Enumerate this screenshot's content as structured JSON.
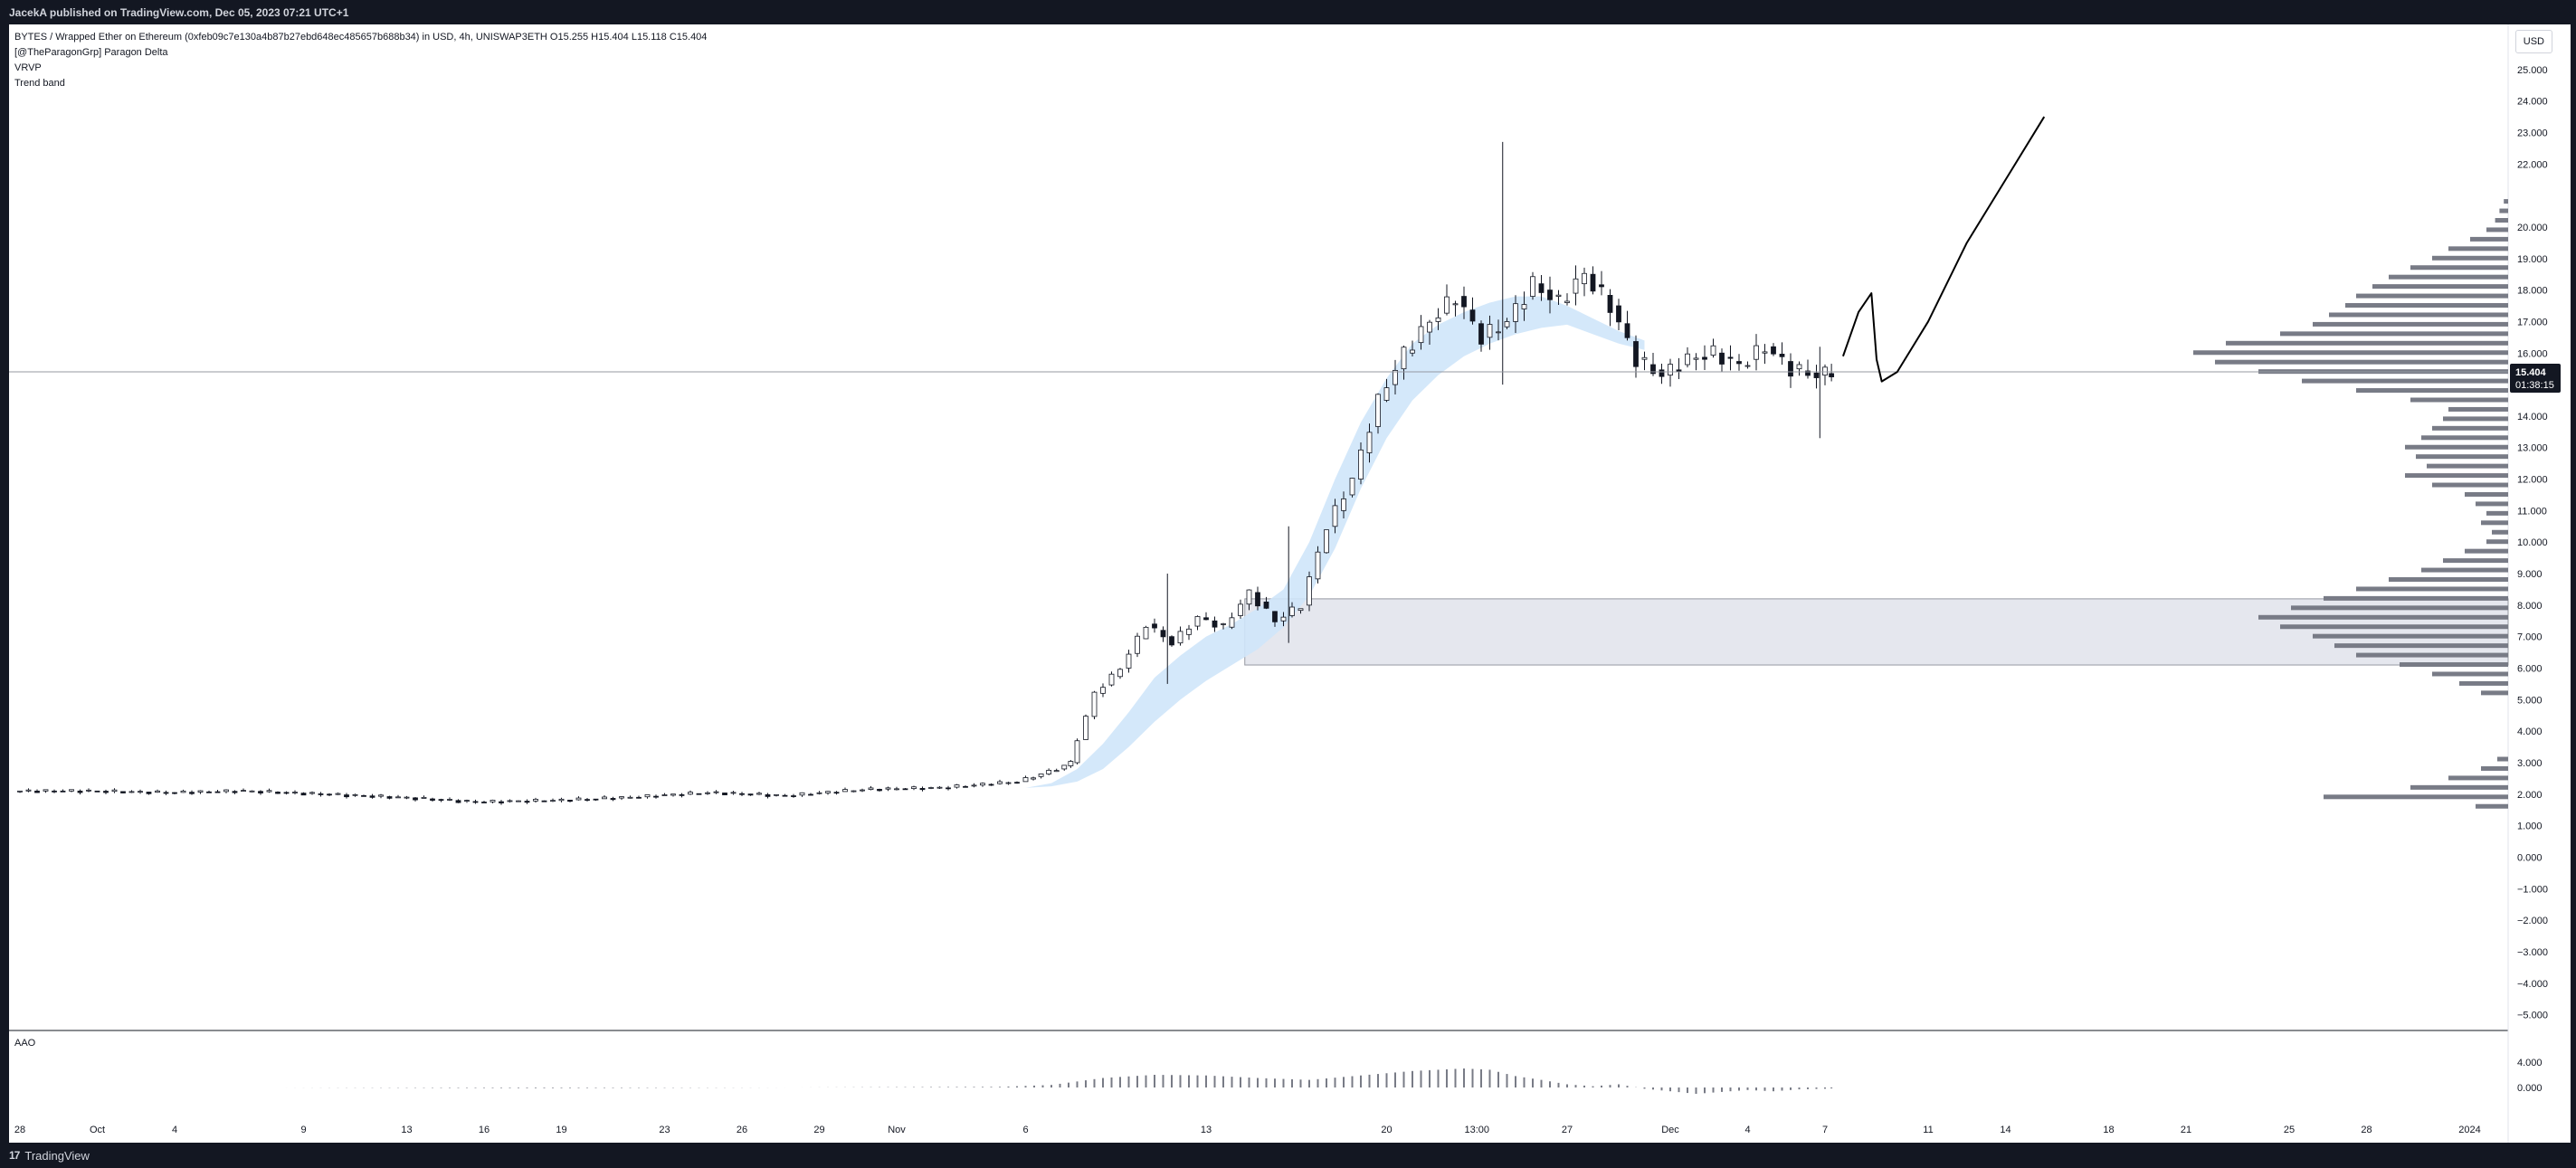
{
  "header": {
    "published_text": "JacekA published on TradingView.com, Dec 05, 2023 07:21 UTC+1"
  },
  "legend": {
    "symbol_line": "BYTES / Wrapped Ether on Ethereum (0xfeb09c7e130a4b87b27ebd648ec485657b688b34) in USD, 4h, UNISWAP3ETH  O15.255  H15.404  L15.118  C15.404",
    "indicators": [
      "[@TheParagonGrp] Paragon Delta",
      "VRVP",
      "Trend band"
    ]
  },
  "currency_button": "USD",
  "oscillator": {
    "label": "AAO",
    "tick_labels": [
      "4.000",
      "0.000"
    ]
  },
  "price_tag": {
    "price": "15.404",
    "countdown": "01:38:15"
  },
  "footer": {
    "logo": "17",
    "brand": "TradingView"
  },
  "colors": {
    "candle": "#131722",
    "band": "#cfe5fa",
    "volume_profile": "#787b86",
    "zone": "#e0e3eb",
    "price_tag_bg": "#131722",
    "drawing": "#000000"
  },
  "chart_data": {
    "type": "candlestick",
    "timeframe": "4h",
    "ylim": [
      -5.5,
      26
    ],
    "y_ticks": [
      -5,
      -4,
      -3,
      -2,
      -1,
      0,
      1,
      2,
      3,
      4,
      5,
      6,
      7,
      8,
      9,
      10,
      11,
      12,
      13,
      14,
      15,
      16,
      17,
      18,
      19,
      20,
      22,
      23,
      24,
      25
    ],
    "y_tick_labels": [
      "−5.000",
      "−4.000",
      "−3.000",
      "−2.000",
      "−1.000",
      "0.000",
      "1.000",
      "2.000",
      "3.000",
      "4.000",
      "5.000",
      "6.000",
      "7.000",
      "8.000",
      "9.000",
      "10.000",
      "11.000",
      "12.000",
      "13.000",
      "14.000",
      "15.000",
      "16.000",
      "17.000",
      "18.000",
      "19.000",
      "20.000",
      "22.000",
      "23.000",
      "24.000",
      "25.000"
    ],
    "x_ticks": [
      {
        "label": "28",
        "day": 0
      },
      {
        "label": "Oct",
        "day": 3
      },
      {
        "label": "4",
        "day": 6
      },
      {
        "label": "9",
        "day": 11
      },
      {
        "label": "13",
        "day": 15
      },
      {
        "label": "16",
        "day": 18
      },
      {
        "label": "19",
        "day": 21
      },
      {
        "label": "23",
        "day": 25
      },
      {
        "label": "26",
        "day": 28
      },
      {
        "label": "29",
        "day": 31
      },
      {
        "label": "Nov",
        "day": 34
      },
      {
        "label": "6",
        "day": 39
      },
      {
        "label": "13",
        "day": 46
      },
      {
        "label": "20",
        "day": 53
      },
      {
        "label": "13:00",
        "day": 56.5
      },
      {
        "label": "27",
        "day": 60
      },
      {
        "label": "Dec",
        "day": 64
      },
      {
        "label": "4",
        "day": 67
      },
      {
        "label": "7",
        "day": 70
      },
      {
        "label": "11",
        "day": 74
      },
      {
        "label": "14",
        "day": 77
      },
      {
        "label": "18",
        "day": 81
      },
      {
        "label": "21",
        "day": 84
      },
      {
        "label": "25",
        "day": 88
      },
      {
        "label": "28",
        "day": 91
      },
      {
        "label": "2024",
        "day": 95
      }
    ],
    "last_price": 15.404,
    "price_path": [
      [
        0,
        2.1
      ],
      [
        3,
        2.1
      ],
      [
        6,
        2.05
      ],
      [
        9,
        2.1
      ],
      [
        12,
        2.0
      ],
      [
        15,
        1.9
      ],
      [
        18,
        1.75
      ],
      [
        21,
        1.8
      ],
      [
        24,
        1.9
      ],
      [
        27,
        2.05
      ],
      [
        30,
        1.95
      ],
      [
        33,
        2.15
      ],
      [
        36,
        2.2
      ],
      [
        39,
        2.4
      ],
      [
        40.5,
        2.8
      ],
      [
        41,
        3.0
      ],
      [
        42,
        5.2
      ],
      [
        43,
        6.0
      ],
      [
        44,
        7.4
      ],
      [
        45,
        6.8
      ],
      [
        46,
        7.6
      ],
      [
        47,
        7.3
      ],
      [
        48,
        8.4
      ],
      [
        49,
        7.5
      ],
      [
        50,
        8.0
      ],
      [
        51,
        10.5
      ],
      [
        52,
        12.0
      ],
      [
        53,
        14.5
      ],
      [
        54,
        16.0
      ],
      [
        55,
        17.0
      ],
      [
        56,
        17.8
      ],
      [
        57,
        16.5
      ],
      [
        58,
        17.0
      ],
      [
        59,
        18.2
      ],
      [
        60,
        17.6
      ],
      [
        61,
        18.5
      ],
      [
        62,
        17.5
      ],
      [
        63,
        15.8
      ],
      [
        64,
        15.3
      ],
      [
        65,
        15.8
      ],
      [
        66,
        16.0
      ],
      [
        67,
        15.6
      ],
      [
        68,
        16.2
      ],
      [
        69,
        15.5
      ],
      [
        70,
        15.3
      ],
      [
        70.5,
        15.4
      ]
    ],
    "wicks": [
      {
        "day": 44.5,
        "high": 9.0,
        "low": 5.5
      },
      {
        "day": 49.2,
        "high": 10.5,
        "low": 6.8
      },
      {
        "day": 57.5,
        "high": 22.7,
        "low": 15.0
      },
      {
        "day": 69.8,
        "high": 16.2,
        "low": 13.3
      }
    ],
    "trend_band": [
      [
        39,
        2.2,
        2.2
      ],
      [
        40,
        2.35,
        2.25
      ],
      [
        41,
        2.8,
        2.4
      ],
      [
        42,
        3.6,
        2.8
      ],
      [
        43,
        4.6,
        3.5
      ],
      [
        44,
        5.7,
        4.3
      ],
      [
        45,
        6.4,
        5.0
      ],
      [
        46,
        7.0,
        5.6
      ],
      [
        47,
        7.4,
        6.1
      ],
      [
        48,
        7.9,
        6.6
      ],
      [
        49,
        8.5,
        7.3
      ],
      [
        50,
        10.0,
        8.3
      ],
      [
        51,
        12.0,
        9.8
      ],
      [
        52,
        13.8,
        11.7
      ],
      [
        53,
        15.2,
        13.3
      ],
      [
        54,
        16.3,
        14.5
      ],
      [
        55,
        16.9,
        15.3
      ],
      [
        56,
        17.3,
        15.9
      ],
      [
        57,
        17.6,
        16.3
      ],
      [
        58,
        17.8,
        16.6
      ],
      [
        59,
        17.8,
        16.8
      ],
      [
        60,
        17.5,
        16.9
      ],
      [
        61,
        17.1,
        16.6
      ],
      [
        62,
        16.7,
        16.3
      ],
      [
        63,
        16.4,
        16.1
      ]
    ],
    "zone": {
      "day_start": 47.5,
      "price_top": 8.2,
      "price_bottom": 6.1
    },
    "volume_profile": [
      [
        20.8,
        4
      ],
      [
        20.5,
        8
      ],
      [
        20.2,
        12
      ],
      [
        19.9,
        20
      ],
      [
        19.6,
        35
      ],
      [
        19.3,
        55
      ],
      [
        19.0,
        70
      ],
      [
        18.7,
        90
      ],
      [
        18.4,
        110
      ],
      [
        18.1,
        125
      ],
      [
        17.8,
        140
      ],
      [
        17.5,
        150
      ],
      [
        17.2,
        165
      ],
      [
        16.9,
        180
      ],
      [
        16.6,
        210
      ],
      [
        16.3,
        260
      ],
      [
        16.0,
        290
      ],
      [
        15.7,
        270
      ],
      [
        15.4,
        230
      ],
      [
        15.1,
        190
      ],
      [
        14.8,
        140
      ],
      [
        14.5,
        90
      ],
      [
        14.2,
        55
      ],
      [
        13.9,
        60
      ],
      [
        13.6,
        70
      ],
      [
        13.3,
        80
      ],
      [
        13.0,
        95
      ],
      [
        12.7,
        85
      ],
      [
        12.4,
        75
      ],
      [
        12.1,
        95
      ],
      [
        11.8,
        70
      ],
      [
        11.5,
        40
      ],
      [
        11.2,
        30
      ],
      [
        10.9,
        20
      ],
      [
        10.6,
        25
      ],
      [
        10.3,
        15
      ],
      [
        10.0,
        20
      ],
      [
        9.7,
        40
      ],
      [
        9.4,
        60
      ],
      [
        9.1,
        80
      ],
      [
        8.8,
        110
      ],
      [
        8.5,
        140
      ],
      [
        8.2,
        170
      ],
      [
        7.9,
        200
      ],
      [
        7.6,
        230
      ],
      [
        7.3,
        210
      ],
      [
        7.0,
        180
      ],
      [
        6.7,
        160
      ],
      [
        6.4,
        140
      ],
      [
        6.1,
        100
      ],
      [
        5.8,
        70
      ],
      [
        5.5,
        45
      ],
      [
        5.2,
        25
      ],
      [
        3.1,
        10
      ],
      [
        2.8,
        25
      ],
      [
        2.5,
        55
      ],
      [
        2.2,
        90
      ],
      [
        1.9,
        170
      ],
      [
        1.6,
        30
      ]
    ],
    "drawing_path": [
      [
        70.7,
        15.9
      ],
      [
        71.3,
        17.3
      ],
      [
        71.8,
        17.9
      ],
      [
        72.0,
        15.8
      ],
      [
        72.2,
        15.1
      ],
      [
        72.8,
        15.4
      ],
      [
        74,
        17.0
      ],
      [
        75.5,
        19.5
      ],
      [
        77,
        21.5
      ],
      [
        78.5,
        23.5
      ]
    ],
    "aao": [
      [
        0,
        0.0
      ],
      [
        10,
        0.0
      ],
      [
        20,
        -0.1
      ],
      [
        30,
        0.0
      ],
      [
        38,
        0.1
      ],
      [
        40,
        0.4
      ],
      [
        42,
        1.5
      ],
      [
        44,
        2.0
      ],
      [
        46,
        1.9
      ],
      [
        48,
        1.5
      ],
      [
        50,
        1.2
      ],
      [
        52,
        1.9
      ],
      [
        54,
        2.6
      ],
      [
        56,
        3.0
      ],
      [
        57,
        2.8
      ],
      [
        58,
        1.8
      ],
      [
        59,
        1.2
      ],
      [
        60,
        0.5
      ],
      [
        61,
        0.2
      ],
      [
        62,
        0.5
      ],
      [
        63,
        -0.2
      ],
      [
        64,
        -0.6
      ],
      [
        65,
        -1.0
      ],
      [
        66,
        -0.7
      ],
      [
        67,
        -0.4
      ],
      [
        68,
        -0.6
      ],
      [
        69,
        -0.3
      ],
      [
        70,
        -0.2
      ],
      [
        70.5,
        -0.1
      ]
    ]
  }
}
